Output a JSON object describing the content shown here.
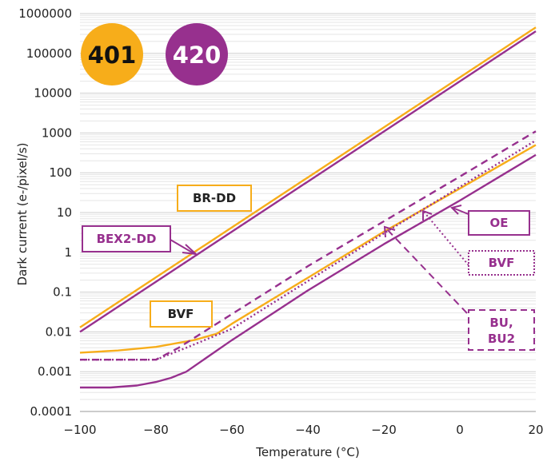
{
  "chart_data": {
    "type": "line",
    "xlabel": "Temperature (°C)",
    "ylabel": "Dark current (e-/pixel/s)",
    "xlim": [
      -100,
      20
    ],
    "ylim": [
      0.0001,
      1000000
    ],
    "yscale": "log",
    "grid": true,
    "x_ticks": [
      "-100",
      "-80",
      "-60",
      "-40",
      "-20",
      "0",
      "20"
    ],
    "y_ticks": [
      "0.0001",
      "0.001",
      "0.01",
      "0.1",
      "1",
      "10",
      "100",
      "1000",
      "10000",
      "100000",
      "1000000"
    ],
    "series": [
      {
        "sensor": "401",
        "label": "BR-DD",
        "color": "#f7ad1a",
        "style": "solid",
        "points": [
          [
            -100,
            0.013
          ],
          [
            20,
            450000
          ]
        ]
      },
      {
        "sensor": "420",
        "label": "BEX2-DD",
        "color": "#97308e",
        "style": "solid",
        "points": [
          [
            -100,
            0.01
          ],
          [
            20,
            360000
          ]
        ]
      },
      {
        "sensor": "401",
        "label": "BVF",
        "color": "#f7ad1a",
        "style": "solid",
        "points": [
          [
            -100,
            0.003
          ],
          [
            -90,
            0.0034
          ],
          [
            -80,
            0.0042
          ],
          [
            -70,
            0.0062
          ],
          [
            -64,
            0.009
          ],
          [
            -60,
            0.016
          ],
          [
            -40,
            0.23
          ],
          [
            -20,
            3.3
          ],
          [
            0,
            40
          ],
          [
            20,
            500
          ]
        ]
      },
      {
        "sensor": "420",
        "label": "OE",
        "color": "#97308e",
        "style": "solid",
        "points": [
          [
            -100,
            0.0004
          ],
          [
            -92,
            0.0004
          ],
          [
            -85,
            0.00045
          ],
          [
            -80,
            0.00055
          ],
          [
            -76,
            0.0007
          ],
          [
            -72,
            0.001
          ],
          [
            -60,
            0.0062
          ],
          [
            -40,
            0.11
          ],
          [
            -20,
            1.6
          ],
          [
            0,
            20
          ],
          [
            20,
            280
          ]
        ]
      },
      {
        "sensor": "420",
        "label": "BVF",
        "color": "#97308e",
        "style": "dotted",
        "points": [
          [
            -100,
            0.002
          ],
          [
            -80,
            0.002
          ],
          [
            -72,
            0.004
          ],
          [
            -60,
            0.012
          ],
          [
            -40,
            0.19
          ],
          [
            -20,
            3.0
          ],
          [
            0,
            44
          ],
          [
            20,
            650
          ]
        ]
      },
      {
        "sensor": "420",
        "label": "BU, BU2",
        "color": "#97308e",
        "style": "dashed",
        "points": [
          [
            -100,
            0.002
          ],
          [
            -80,
            0.002
          ],
          [
            -74,
            0.004
          ],
          [
            -60,
            0.028
          ],
          [
            -40,
            0.45
          ],
          [
            -20,
            6.0
          ],
          [
            0,
            80
          ],
          [
            20,
            1100
          ]
        ]
      }
    ],
    "badges": [
      {
        "text": "401",
        "color": "#f7ad1a",
        "text_color": "#111111"
      },
      {
        "text": "420",
        "color": "#97308e",
        "text_color": "#ffffff"
      }
    ],
    "labels": {
      "br_dd": "BR-DD",
      "bex2_dd": "BEX2-DD",
      "bvf_401": "BVF",
      "oe": "OE",
      "bvf_420": "BVF",
      "bu_line1": "BU,",
      "bu_line2": "BU2"
    }
  }
}
